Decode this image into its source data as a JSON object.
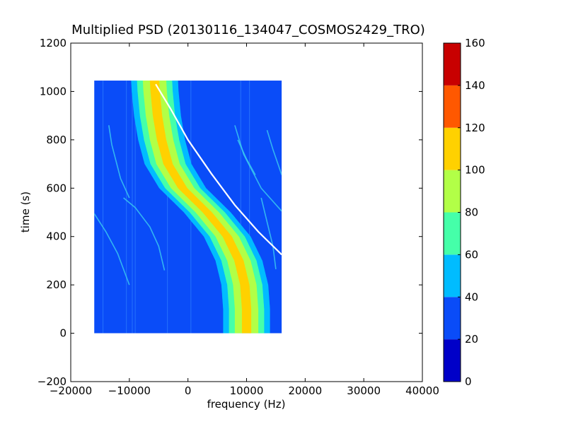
{
  "chart_data": {
    "type": "heatmap",
    "title": "Multiplied PSD (20130116_134047_COSMOS2429_TRO)",
    "xlabel": "frequency (Hz)",
    "ylabel": "time (s)",
    "xlim": [
      -20000,
      40000
    ],
    "ylim": [
      -200,
      1200
    ],
    "xticks": [
      -20000,
      -10000,
      0,
      10000,
      20000,
      30000,
      40000
    ],
    "xtick_labels": [
      "−20000",
      "−10000",
      "0",
      "10000",
      "20000",
      "30000",
      "40000"
    ],
    "yticks": [
      -200,
      0,
      200,
      400,
      600,
      800,
      1000,
      1200
    ],
    "ytick_labels": [
      "−200",
      "0",
      "200",
      "400",
      "600",
      "800",
      "1000",
      "1200"
    ],
    "grid": false,
    "data_extent": {
      "x": [
        -16000,
        16000
      ],
      "y": [
        0,
        1045
      ]
    },
    "background_level_color": "#0a4cf8",
    "main_trace": {
      "points": [
        {
          "y": 0,
          "x": 10000
        },
        {
          "y": 100,
          "x": 10000
        },
        {
          "y": 200,
          "x": 9700
        },
        {
          "y": 300,
          "x": 8700
        },
        {
          "y": 400,
          "x": 6700
        },
        {
          "y": 500,
          "x": 3300
        },
        {
          "y": 600,
          "x": -900
        },
        {
          "y": 700,
          "x": -3400
        },
        {
          "y": 800,
          "x": -4500
        },
        {
          "y": 900,
          "x": -5200
        },
        {
          "y": 1000,
          "x": -5600
        },
        {
          "y": 1045,
          "x": -5700
        }
      ],
      "band_half_widths_hz": [
        {
          "level": 40,
          "width": 4000
        },
        {
          "level": 60,
          "width": 3000
        },
        {
          "level": 80,
          "width": 2000
        },
        {
          "level": 100,
          "width": 800
        }
      ]
    },
    "white_trace": {
      "points": [
        {
          "x": -5500,
          "y": 1030
        },
        {
          "x": -3000,
          "y": 930
        },
        {
          "x": 0,
          "y": 800
        },
        {
          "x": 4000,
          "y": 660
        },
        {
          "x": 8000,
          "y": 530
        },
        {
          "x": 12000,
          "y": 420
        },
        {
          "x": 16000,
          "y": 325
        }
      ]
    },
    "faint_traces": [
      {
        "points": [
          {
            "x": -13500,
            "y": 860
          },
          {
            "x": -13000,
            "y": 780
          },
          {
            "x": -11500,
            "y": 640
          },
          {
            "x": -10000,
            "y": 560
          }
        ]
      },
      {
        "points": [
          {
            "x": -16000,
            "y": 495
          },
          {
            "x": -14000,
            "y": 420
          },
          {
            "x": -12000,
            "y": 330
          },
          {
            "x": -10000,
            "y": 200
          }
        ]
      },
      {
        "points": [
          {
            "x": -11000,
            "y": 560
          },
          {
            "x": -9000,
            "y": 520
          },
          {
            "x": -6500,
            "y": 440
          },
          {
            "x": -5000,
            "y": 360
          },
          {
            "x": -4000,
            "y": 260
          }
        ]
      },
      {
        "points": [
          {
            "x": -7500,
            "y": 900
          },
          {
            "x": -6500,
            "y": 780
          },
          {
            "x": -5000,
            "y": 670
          },
          {
            "x": -3000,
            "y": 600
          }
        ]
      },
      {
        "points": [
          {
            "x": 8000,
            "y": 860
          },
          {
            "x": 9500,
            "y": 740
          },
          {
            "x": 12500,
            "y": 600
          },
          {
            "x": 16000,
            "y": 505
          }
        ]
      },
      {
        "points": [
          {
            "x": 12500,
            "y": 560
          },
          {
            "x": 13500,
            "y": 460
          },
          {
            "x": 14500,
            "y": 360
          },
          {
            "x": 15000,
            "y": 265
          }
        ]
      },
      {
        "points": [
          {
            "x": 13500,
            "y": 840
          },
          {
            "x": 14500,
            "y": 760
          },
          {
            "x": 16000,
            "y": 655
          }
        ]
      },
      {
        "points": [
          {
            "x": 8500,
            "y": 800
          },
          {
            "x": 10000,
            "y": 720
          },
          {
            "x": 11500,
            "y": 655
          }
        ]
      }
    ],
    "vertical_lines_x": [
      -14500,
      -10500,
      -9500,
      -9000,
      -3500,
      500,
      9000,
      10500
    ],
    "colorbar": {
      "range": [
        0,
        160
      ],
      "ticks": [
        0,
        20,
        40,
        60,
        80,
        100,
        120,
        140,
        160
      ],
      "levels": [
        {
          "from": 0,
          "to": 20,
          "color": "#0000c8"
        },
        {
          "from": 20,
          "to": 40,
          "color": "#0a4cf8"
        },
        {
          "from": 40,
          "to": 60,
          "color": "#00bcff"
        },
        {
          "from": 60,
          "to": 80,
          "color": "#45ffa9"
        },
        {
          "from": 80,
          "to": 100,
          "color": "#b2ff47"
        },
        {
          "from": 100,
          "to": 120,
          "color": "#ffd100"
        },
        {
          "from": 120,
          "to": 140,
          "color": "#ff5800"
        },
        {
          "from": 140,
          "to": 160,
          "color": "#c80000"
        }
      ]
    }
  }
}
